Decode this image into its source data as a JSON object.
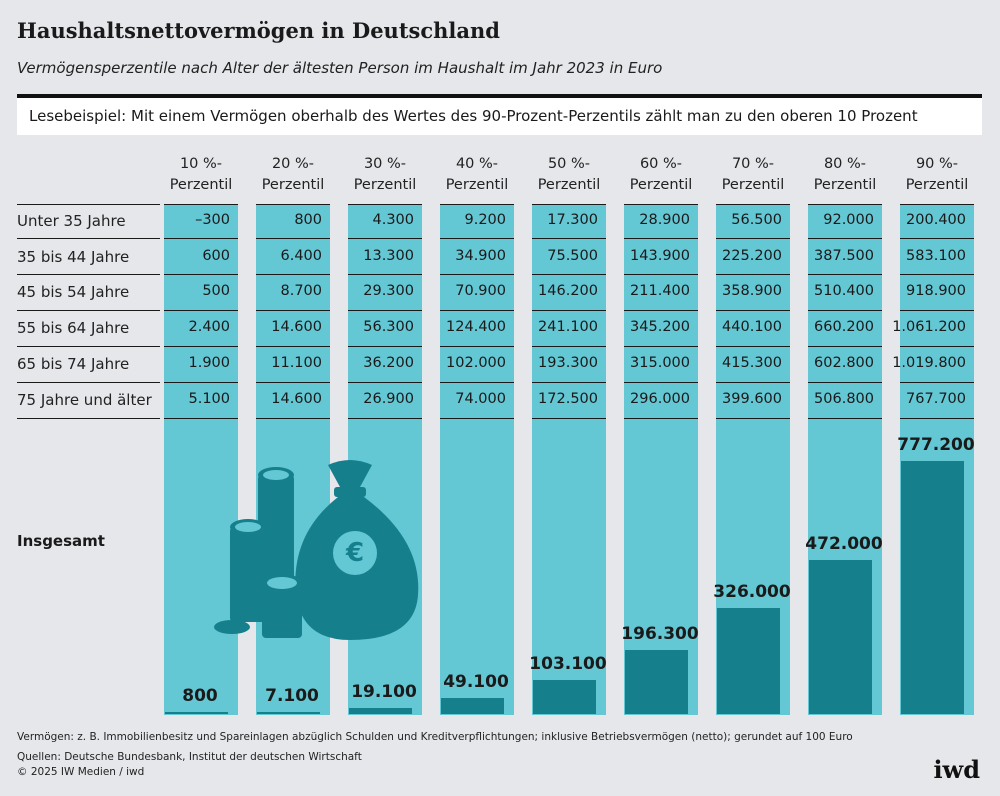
{
  "header": {
    "title": "Haushaltsnettovermögen in Deutschland",
    "subtitle": "Vermögensperzentile nach Alter der ältesten Person im Haushalt im Jahr 2023 in Euro",
    "reading_example": "Lesebeispiel: Mit einem Vermögen oberhalb des Wertes des 90-Prozent-Perzentils zählt man zu den oberen 10 Prozent"
  },
  "colors": {
    "column": "#63c7d4",
    "bar": "#167f8c",
    "background": "#e5e7ea"
  },
  "chart_data": {
    "type": "table",
    "columns": [
      [
        "10 %-",
        "Perzentil"
      ],
      [
        "20 %-",
        "Perzentil"
      ],
      [
        "30 %-",
        "Perzentil"
      ],
      [
        "40 %-",
        "Perzentil"
      ],
      [
        "50 %-",
        "Perzentil"
      ],
      [
        "60 %-",
        "Perzentil"
      ],
      [
        "70 %-",
        "Perzentil"
      ],
      [
        "80 %-",
        "Perzentil"
      ],
      [
        "90 %-",
        "Perzentil"
      ]
    ],
    "rows": [
      {
        "label": "Unter 35 Jahre",
        "values": [
          "–300",
          "800",
          "4.300",
          "9.200",
          "17.300",
          "28.900",
          "56.500",
          "92.000",
          "200.400"
        ]
      },
      {
        "label": "35 bis 44 Jahre",
        "values": [
          "600",
          "6.400",
          "13.300",
          "34.900",
          "75.500",
          "143.900",
          "225.200",
          "387.500",
          "583.100"
        ]
      },
      {
        "label": "45 bis 54 Jahre",
        "values": [
          "500",
          "8.700",
          "29.300",
          "70.900",
          "146.200",
          "211.400",
          "358.900",
          "510.400",
          "918.900"
        ]
      },
      {
        "label": "55 bis 64 Jahre",
        "values": [
          "2.400",
          "14.600",
          "56.300",
          "124.400",
          "241.100",
          "345.200",
          "440.100",
          "660.200",
          "1.061.200"
        ]
      },
      {
        "label": "65 bis 74 Jahre",
        "values": [
          "1.900",
          "11.100",
          "36.200",
          "102.000",
          "193.300",
          "315.000",
          "415.300",
          "602.800",
          "1.019.800"
        ]
      },
      {
        "label": "75 Jahre und älter",
        "values": [
          "5.100",
          "14.600",
          "26.900",
          "74.000",
          "172.500",
          "296.000",
          "399.600",
          "506.800",
          "767.700"
        ]
      }
    ],
    "total": {
      "label": "Insgesamt",
      "type": "bar",
      "values": [
        800,
        7100,
        19100,
        49100,
        103100,
        196300,
        326000,
        472000,
        777200
      ],
      "value_labels": [
        "800",
        "7.100",
        "19.100",
        "49.100",
        "103.100",
        "196.300",
        "326.000",
        "472.000",
        "777.200"
      ]
    }
  },
  "footer": {
    "note": "Vermögen: z. B. Immobilienbesitz und Spareinlagen abzüglich Schulden und Kreditverpflichtungen; inklusive Betriebsvermögen (netto); gerundet auf 100 Euro",
    "sources": "Quellen: Deutsche Bundesbank, Institut der deutschen Wirtschaft",
    "copyright": "© 2025 IW Medien / iwd",
    "logo": "iwd"
  }
}
